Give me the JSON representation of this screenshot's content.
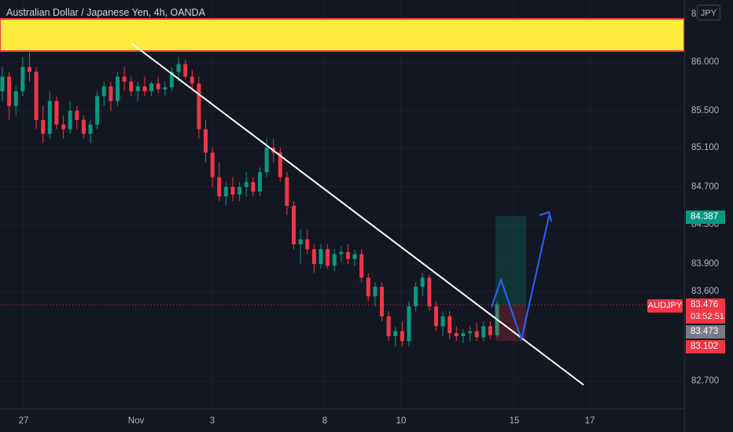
{
  "header": {
    "title": "Australian Dollar / Japanese Yen, 4h, OANDA",
    "currency_button": "JPY"
  },
  "symbol_tag": "AUDJPY",
  "price_axis": {
    "labels": [
      "86.000",
      "85.500",
      "85.100",
      "84.700",
      "84.300",
      "83.900",
      "83.600",
      "82.700"
    ],
    "top_partial": "86"
  },
  "price_tags": {
    "target": {
      "label": "84.387",
      "color": "#089981"
    },
    "current": {
      "label": "83.476",
      "countdown": "03:52:51",
      "color": "#f23645"
    },
    "entry": {
      "label": "83.473",
      "color": "#787b86"
    },
    "stop": {
      "label": "83.102",
      "color": "#f23645"
    }
  },
  "time_axis": {
    "labels": [
      "27",
      "Nov",
      "3",
      "8",
      "10",
      "15",
      "17"
    ]
  },
  "chart_data": {
    "type": "candlestick",
    "title": "Australian Dollar / Japanese Yen, 4h, OANDA",
    "y_axis_ticks": [
      86.0,
      85.5,
      85.1,
      84.7,
      84.3,
      83.9,
      83.6,
      82.7
    ],
    "x_axis_ticks": [
      "27",
      "Nov",
      "3",
      "8",
      "10",
      "15",
      "17"
    ],
    "current_price": 83.476,
    "candles_ohlc": [
      [
        85.7,
        85.95,
        85.6,
        85.85
      ],
      [
        85.85,
        85.9,
        85.4,
        85.55
      ],
      [
        85.55,
        85.75,
        85.45,
        85.7
      ],
      [
        85.7,
        86.05,
        85.65,
        85.95
      ],
      [
        85.95,
        86.1,
        85.8,
        85.9
      ],
      [
        85.9,
        85.95,
        85.3,
        85.4
      ],
      [
        85.4,
        85.55,
        85.15,
        85.25
      ],
      [
        85.25,
        85.7,
        85.2,
        85.6
      ],
      [
        85.6,
        85.65,
        85.3,
        85.35
      ],
      [
        85.35,
        85.45,
        85.2,
        85.3
      ],
      [
        85.3,
        85.6,
        85.25,
        85.5
      ],
      [
        85.5,
        85.55,
        85.3,
        85.4
      ],
      [
        85.4,
        85.45,
        85.2,
        85.25
      ],
      [
        85.25,
        85.4,
        85.15,
        85.35
      ],
      [
        85.35,
        85.7,
        85.3,
        85.65
      ],
      [
        85.65,
        85.8,
        85.55,
        85.75
      ],
      [
        85.75,
        85.8,
        85.5,
        85.6
      ],
      [
        85.6,
        85.9,
        85.55,
        85.85
      ],
      [
        85.85,
        85.95,
        85.7,
        85.8
      ],
      [
        85.8,
        85.85,
        85.65,
        85.7
      ],
      [
        85.7,
        85.8,
        85.6,
        85.75
      ],
      [
        85.75,
        85.85,
        85.65,
        85.7
      ],
      [
        85.7,
        85.8,
        85.65,
        85.78
      ],
      [
        85.78,
        85.85,
        85.68,
        85.72
      ],
      [
        85.72,
        85.8,
        85.65,
        85.74
      ],
      [
        85.74,
        85.95,
        85.7,
        85.9
      ],
      [
        85.9,
        86.05,
        85.8,
        85.98
      ],
      [
        85.98,
        86.02,
        85.82,
        85.85
      ],
      [
        85.85,
        85.92,
        85.7,
        85.78
      ],
      [
        85.78,
        85.85,
        85.2,
        85.3
      ],
      [
        85.3,
        85.4,
        84.95,
        85.05
      ],
      [
        85.05,
        85.1,
        84.7,
        84.8
      ],
      [
        84.8,
        84.95,
        84.55,
        84.6
      ],
      [
        84.6,
        84.75,
        84.5,
        84.7
      ],
      [
        84.7,
        84.8,
        84.55,
        84.62
      ],
      [
        84.62,
        84.75,
        84.55,
        84.7
      ],
      [
        84.7,
        84.85,
        84.6,
        84.75
      ],
      [
        84.75,
        84.8,
        84.6,
        84.65
      ],
      [
        84.65,
        84.9,
        84.6,
        84.85
      ],
      [
        84.85,
        85.2,
        84.8,
        85.1
      ],
      [
        85.1,
        85.2,
        84.95,
        85.05
      ],
      [
        85.05,
        85.1,
        84.75,
        84.8
      ],
      [
        84.8,
        84.85,
        84.4,
        84.5
      ],
      [
        84.5,
        84.55,
        84.05,
        84.1
      ],
      [
        84.1,
        84.25,
        83.9,
        84.15
      ],
      [
        84.15,
        84.25,
        84.0,
        84.05
      ],
      [
        84.05,
        84.1,
        83.8,
        83.9
      ],
      [
        83.9,
        84.1,
        83.85,
        84.05
      ],
      [
        84.05,
        84.1,
        83.85,
        83.88
      ],
      [
        83.88,
        84.05,
        83.82,
        84.0
      ],
      [
        84.0,
        84.08,
        83.92,
        84.02
      ],
      [
        84.02,
        84.1,
        83.9,
        83.95
      ],
      [
        83.95,
        84.05,
        83.88,
        84.0
      ],
      [
        84.0,
        84.05,
        83.7,
        83.75
      ],
      [
        83.75,
        83.8,
        83.5,
        83.55
      ],
      [
        83.55,
        83.7,
        83.45,
        83.65
      ],
      [
        83.65,
        83.7,
        83.3,
        83.35
      ],
      [
        83.35,
        83.4,
        83.1,
        83.15
      ],
      [
        83.15,
        83.25,
        83.05,
        83.2
      ],
      [
        83.2,
        83.3,
        83.05,
        83.1
      ],
      [
        83.1,
        83.5,
        83.05,
        83.45
      ],
      [
        83.45,
        83.7,
        83.4,
        83.65
      ],
      [
        83.65,
        83.8,
        83.55,
        83.75
      ],
      [
        83.75,
        83.78,
        83.4,
        83.45
      ],
      [
        83.45,
        83.5,
        83.2,
        83.25
      ],
      [
        83.25,
        83.4,
        83.15,
        83.35
      ],
      [
        83.35,
        83.4,
        83.12,
        83.18
      ],
      [
        83.18,
        83.25,
        83.1,
        83.15
      ],
      [
        83.15,
        83.22,
        83.08,
        83.18
      ],
      [
        83.18,
        83.25,
        83.1,
        83.2
      ],
      [
        83.2,
        83.28,
        83.1,
        83.14
      ],
      [
        83.14,
        83.3,
        83.1,
        83.25
      ],
      [
        83.25,
        83.3,
        83.12,
        83.16
      ],
      [
        83.16,
        83.5,
        83.14,
        83.47
      ]
    ],
    "drawings": {
      "resistance_zone": {
        "color": "#ffeb3b",
        "border": "#f23645"
      },
      "long_position": {
        "entry": 83.473,
        "target": 84.387,
        "stop": 83.102
      },
      "projected_path": [
        83.473,
        83.7,
        83.15,
        84.387
      ]
    }
  }
}
